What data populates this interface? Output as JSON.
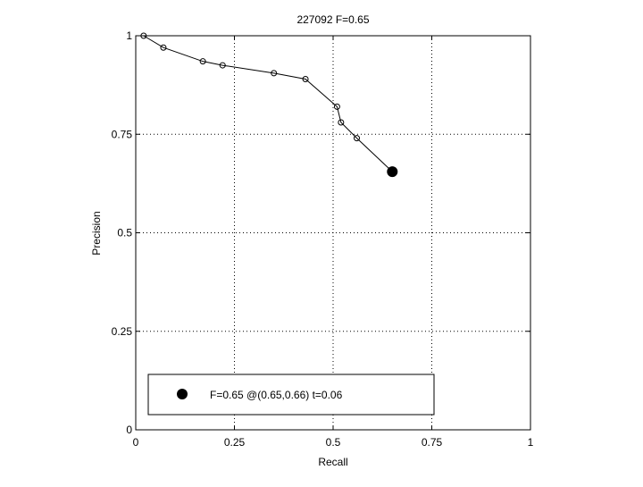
{
  "chart_data": {
    "type": "line",
    "title": "227092 F=0.65",
    "xlabel": "Recall",
    "ylabel": "Precision",
    "xlim": [
      0,
      1
    ],
    "ylim": [
      0,
      1
    ],
    "xticks": [
      0,
      0.25,
      0.5,
      0.75,
      1
    ],
    "yticks": [
      0,
      0.25,
      0.5,
      0.75,
      1
    ],
    "xtick_labels": [
      "0",
      "0.25",
      "0.5",
      "0.75",
      "1"
    ],
    "ytick_labels": [
      "0",
      "0.25",
      "0.5",
      "0.75",
      "1"
    ],
    "grid": true,
    "grid_style": "dotted",
    "series": [
      {
        "marker": "open-circle",
        "color": "#000000",
        "x": [
          0.02,
          0.07,
          0.17,
          0.22,
          0.35,
          0.43,
          0.51,
          0.52,
          0.56,
          0.65
        ],
        "y": [
          1.0,
          0.97,
          0.935,
          0.925,
          0.905,
          0.89,
          0.82,
          0.78,
          0.74,
          0.655
        ]
      }
    ],
    "best_point": {
      "x": 0.65,
      "y": 0.655,
      "marker": "filled-circle",
      "color": "#000000"
    },
    "legend": {
      "position": "bottom",
      "entries": [
        "F=0.65 @(0.65,0.66) t=0.06"
      ]
    }
  }
}
